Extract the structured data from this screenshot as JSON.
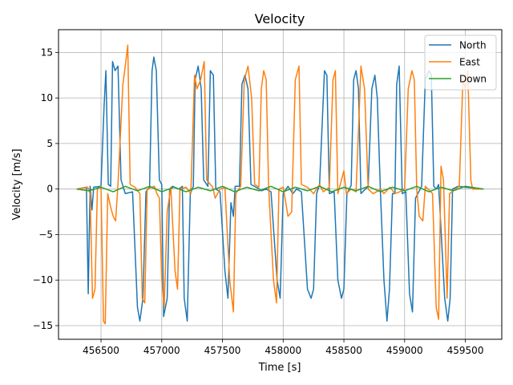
{
  "chart_data": {
    "type": "line",
    "title": "Velocity",
    "xlabel": "Time [s]",
    "ylabel": "Velocity [m/s]",
    "xlim": [
      456150,
      459800
    ],
    "ylim": [
      -16.5,
      17.5
    ],
    "x_ticks": [
      456500,
      457000,
      457500,
      458000,
      458500,
      459000,
      459500
    ],
    "x_tick_labels": [
      "456500",
      "457000",
      "457500",
      "458000",
      "458500",
      "459000",
      "459500"
    ],
    "y_ticks": [
      -15,
      -10,
      -5,
      0,
      5,
      10,
      15
    ],
    "y_tick_labels": [
      "−15",
      "−10",
      "−5",
      "0",
      "5",
      "10",
      "15"
    ],
    "grid": true,
    "legend_position": "top-right",
    "series": [
      {
        "name": "North",
        "color": "#1f77b4",
        "points": [
          [
            456300,
            0
          ],
          [
            456380,
            0.2
          ],
          [
            456395,
            -11.5
          ],
          [
            456410,
            0.3
          ],
          [
            456425,
            -2.3
          ],
          [
            456440,
            0.2
          ],
          [
            456500,
            0.3
          ],
          [
            456525,
            9
          ],
          [
            456540,
            13
          ],
          [
            456560,
            0.5
          ],
          [
            456580,
            0.3
          ],
          [
            456595,
            14
          ],
          [
            456615,
            13
          ],
          [
            456640,
            13.5
          ],
          [
            456665,
            1
          ],
          [
            456700,
            -0.5
          ],
          [
            456760,
            -0.3
          ],
          [
            456800,
            -13
          ],
          [
            456820,
            -14.5
          ],
          [
            456845,
            -12
          ],
          [
            456870,
            -0.3
          ],
          [
            456900,
            0.2
          ],
          [
            456920,
            13
          ],
          [
            456935,
            14.5
          ],
          [
            456955,
            13
          ],
          [
            456980,
            1
          ],
          [
            457000,
            0.5
          ],
          [
            457015,
            -14
          ],
          [
            457045,
            -12
          ],
          [
            457065,
            0
          ],
          [
            457090,
            0.3
          ],
          [
            457140,
            0
          ],
          [
            457170,
            0.3
          ],
          [
            457185,
            -12
          ],
          [
            457210,
            -14.5
          ],
          [
            457235,
            -0.5
          ],
          [
            457260,
            0.3
          ],
          [
            457275,
            12
          ],
          [
            457300,
            13.5
          ],
          [
            457325,
            11
          ],
          [
            457345,
            1
          ],
          [
            457380,
            0.3
          ],
          [
            457400,
            13
          ],
          [
            457425,
            12.5
          ],
          [
            457445,
            0
          ],
          [
            457480,
            -0.3
          ],
          [
            457520,
            -9
          ],
          [
            457545,
            -12
          ],
          [
            457570,
            -1.5
          ],
          [
            457590,
            -3
          ],
          [
            457605,
            0.3
          ],
          [
            457640,
            0.3
          ],
          [
            457660,
            11.5
          ],
          [
            457685,
            12.5
          ],
          [
            457710,
            11
          ],
          [
            457735,
            0.5
          ],
          [
            457790,
            0.1
          ],
          [
            457820,
            -0.2
          ],
          [
            457860,
            0
          ],
          [
            457900,
            -0.3
          ],
          [
            457950,
            -10
          ],
          [
            457975,
            -12
          ],
          [
            458000,
            -0.5
          ],
          [
            458040,
            0.3
          ],
          [
            458080,
            -0.5
          ],
          [
            458110,
            0
          ],
          [
            458150,
            -0.3
          ],
          [
            458200,
            -11
          ],
          [
            458230,
            -12
          ],
          [
            458250,
            -11
          ],
          [
            458275,
            -0.5
          ],
          [
            458300,
            0.5
          ],
          [
            458340,
            13
          ],
          [
            458360,
            12.5
          ],
          [
            458380,
            -0.5
          ],
          [
            458420,
            -0.3
          ],
          [
            458450,
            -10
          ],
          [
            458480,
            -12
          ],
          [
            458500,
            -11
          ],
          [
            458525,
            -0.5
          ],
          [
            458560,
            0.4
          ],
          [
            458580,
            12
          ],
          [
            458600,
            13
          ],
          [
            458620,
            11
          ],
          [
            458640,
            -0.5
          ],
          [
            458700,
            0.3
          ],
          [
            458730,
            11
          ],
          [
            458755,
            12.5
          ],
          [
            458775,
            10
          ],
          [
            458800,
            0
          ],
          [
            458830,
            -10
          ],
          [
            458855,
            -14.5
          ],
          [
            458875,
            -11
          ],
          [
            458900,
            -0.5
          ],
          [
            458920,
            -0.5
          ],
          [
            458935,
            11.5
          ],
          [
            458955,
            13.5
          ],
          [
            458980,
            -0.5
          ],
          [
            459010,
            -0.3
          ],
          [
            459040,
            -11.5
          ],
          [
            459065,
            -13.5
          ],
          [
            459090,
            -1
          ],
          [
            459140,
            0.3
          ],
          [
            459170,
            12
          ],
          [
            459200,
            13
          ],
          [
            459220,
            12.5
          ],
          [
            459240,
            0.3
          ],
          [
            459260,
            0
          ],
          [
            459280,
            0.5
          ],
          [
            459330,
            -12
          ],
          [
            459355,
            -14.5
          ],
          [
            459375,
            -12
          ],
          [
            459395,
            0
          ],
          [
            459440,
            0.3
          ],
          [
            459500,
            0.2
          ],
          [
            459650,
            0
          ]
        ]
      },
      {
        "name": "East",
        "color": "#ff7f0e",
        "points": [
          [
            456300,
            0
          ],
          [
            456390,
            0.2
          ],
          [
            456410,
            -0.5
          ],
          [
            456430,
            -12
          ],
          [
            456450,
            -11
          ],
          [
            456470,
            0
          ],
          [
            456500,
            0.3
          ],
          [
            456520,
            -14.5
          ],
          [
            456535,
            -14.8
          ],
          [
            456555,
            -0.5
          ],
          [
            456580,
            -2
          ],
          [
            456600,
            -3
          ],
          [
            456620,
            -3.5
          ],
          [
            456640,
            0.5
          ],
          [
            456680,
            11.5
          ],
          [
            456700,
            13.5
          ],
          [
            456720,
            15.8
          ],
          [
            456740,
            0.5
          ],
          [
            456780,
            0.2
          ],
          [
            456820,
            -0.5
          ],
          [
            456840,
            -12
          ],
          [
            456860,
            -12.5
          ],
          [
            456880,
            0
          ],
          [
            456940,
            0.3
          ],
          [
            456960,
            -0.5
          ],
          [
            456980,
            -1
          ],
          [
            457000,
            -10
          ],
          [
            457020,
            -13
          ],
          [
            457045,
            -2.5
          ],
          [
            457075,
            0.2
          ],
          [
            457110,
            -9
          ],
          [
            457130,
            -11
          ],
          [
            457150,
            0
          ],
          [
            457200,
            0.2
          ],
          [
            457240,
            -0.5
          ],
          [
            457270,
            12.5
          ],
          [
            457290,
            11
          ],
          [
            457320,
            12
          ],
          [
            457350,
            14
          ],
          [
            457370,
            1
          ],
          [
            457420,
            0.2
          ],
          [
            457440,
            -1
          ],
          [
            457480,
            0
          ],
          [
            457520,
            0.2
          ],
          [
            457560,
            -10
          ],
          [
            457590,
            -13.5
          ],
          [
            457610,
            -0.5
          ],
          [
            457650,
            0.3
          ],
          [
            457680,
            12
          ],
          [
            457710,
            13.5
          ],
          [
            457740,
            10
          ],
          [
            457765,
            0.5
          ],
          [
            457800,
            0.2
          ],
          [
            457820,
            11
          ],
          [
            457840,
            13
          ],
          [
            457860,
            12
          ],
          [
            457880,
            0.3
          ],
          [
            457920,
            -10
          ],
          [
            457945,
            -12.5
          ],
          [
            457965,
            0
          ],
          [
            458000,
            0.2
          ],
          [
            458040,
            -3
          ],
          [
            458070,
            -2.5
          ],
          [
            458100,
            12
          ],
          [
            458130,
            13.5
          ],
          [
            458150,
            0.5
          ],
          [
            458200,
            0.2
          ],
          [
            458250,
            -0.5
          ],
          [
            458300,
            0.5
          ],
          [
            458330,
            -0.3
          ],
          [
            458380,
            0.2
          ],
          [
            458410,
            12
          ],
          [
            458430,
            13
          ],
          [
            458450,
            -0.5
          ],
          [
            458500,
            2
          ],
          [
            458520,
            -0.5
          ],
          [
            458560,
            0
          ],
          [
            458600,
            -0.3
          ],
          [
            458640,
            13.5
          ],
          [
            458670,
            11
          ],
          [
            458700,
            0
          ],
          [
            458740,
            -0.5
          ],
          [
            458770,
            -0.3
          ],
          [
            458800,
            0
          ],
          [
            458830,
            -0.5
          ],
          [
            458880,
            0.2
          ],
          [
            458920,
            -0.5
          ],
          [
            458960,
            -0.3
          ],
          [
            459000,
            0
          ],
          [
            459030,
            11
          ],
          [
            459060,
            13
          ],
          [
            459080,
            12
          ],
          [
            459100,
            0
          ],
          [
            459120,
            -3
          ],
          [
            459150,
            -3.5
          ],
          [
            459170,
            0.3
          ],
          [
            459230,
            -0.5
          ],
          [
            459260,
            -13
          ],
          [
            459280,
            -14.3
          ],
          [
            459300,
            2.5
          ],
          [
            459320,
            1
          ],
          [
            459350,
            -12
          ],
          [
            459370,
            -0.5
          ],
          [
            459420,
            0
          ],
          [
            459450,
            0.3
          ],
          [
            459480,
            12
          ],
          [
            459500,
            11
          ],
          [
            459520,
            13
          ],
          [
            459545,
            1
          ],
          [
            459560,
            0
          ],
          [
            459650,
            0
          ]
        ]
      },
      {
        "name": "Down",
        "color": "#2ca02c",
        "points": [
          [
            456300,
            0
          ],
          [
            456400,
            -0.2
          ],
          [
            456500,
            0.2
          ],
          [
            456600,
            -0.3
          ],
          [
            456700,
            0.3
          ],
          [
            456800,
            -0.2
          ],
          [
            456900,
            0.3
          ],
          [
            457000,
            -0.3
          ],
          [
            457100,
            0.2
          ],
          [
            457200,
            -0.3
          ],
          [
            457300,
            0.2
          ],
          [
            457400,
            -0.2
          ],
          [
            457500,
            0.3
          ],
          [
            457600,
            -0.3
          ],
          [
            457700,
            0.2
          ],
          [
            457800,
            -0.2
          ],
          [
            457900,
            0.3
          ],
          [
            458000,
            -0.3
          ],
          [
            458100,
            0.2
          ],
          [
            458200,
            -0.2
          ],
          [
            458300,
            0.3
          ],
          [
            458400,
            -0.3
          ],
          [
            458500,
            0.2
          ],
          [
            458600,
            -0.2
          ],
          [
            458700,
            0.3
          ],
          [
            458800,
            -0.3
          ],
          [
            458900,
            0.2
          ],
          [
            459000,
            -0.2
          ],
          [
            459100,
            0.3
          ],
          [
            459200,
            -0.3
          ],
          [
            459300,
            0.2
          ],
          [
            459400,
            -0.2
          ],
          [
            459500,
            0.3
          ],
          [
            459650,
            0
          ]
        ]
      }
    ]
  }
}
